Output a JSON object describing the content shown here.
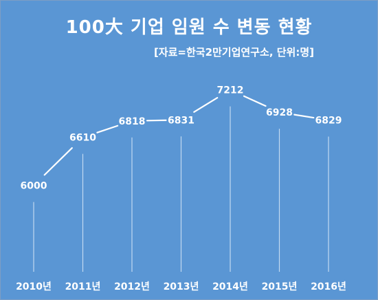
{
  "colors": {
    "background": "#5a96d4",
    "line": "#ffffff",
    "text": "#ffffff"
  },
  "chart_data": {
    "type": "line",
    "title": "100大 기업 임원 수 변동 현황",
    "subtitle": "[자료=한국2만기업연구소, 단위:명]",
    "xlabel": "",
    "ylabel": "",
    "categories": [
      "2010년",
      "2011년",
      "2012년",
      "2013년",
      "2014년",
      "2015년",
      "2016년"
    ],
    "series": [
      {
        "values": [
          6000,
          6610,
          6818,
          6831,
          7212,
          6928,
          6829
        ],
        "labels": [
          "6000",
          "6610",
          "6818",
          "6831",
          "7212",
          "6928",
          "6829"
        ]
      }
    ],
    "ylim": [
      5500,
      7400
    ],
    "grid": false,
    "legend": "none",
    "drop_lines": true
  }
}
